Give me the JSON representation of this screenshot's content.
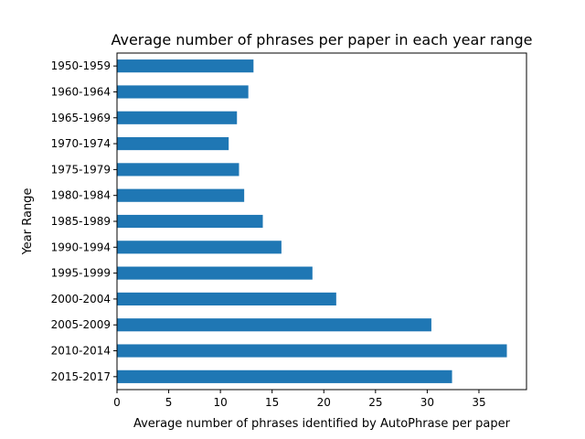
{
  "chart_data": {
    "type": "bar",
    "orientation": "horizontal",
    "title": "Average number of phrases per paper in each year range",
    "xlabel": "Average number of phrases identified by AutoPhrase per paper",
    "ylabel": "Year Range",
    "categories": [
      "1950-1959",
      "1960-1964",
      "1965-1969",
      "1970-1974",
      "1975-1979",
      "1980-1984",
      "1985-1989",
      "1990-1994",
      "1995-1999",
      "2000-2004",
      "2005-2009",
      "2010-2014",
      "2015-2017"
    ],
    "values": [
      13.2,
      12.7,
      11.6,
      10.8,
      11.8,
      12.3,
      14.1,
      15.9,
      18.9,
      21.2,
      30.4,
      37.7,
      32.4
    ],
    "xlim": [
      0,
      39.6
    ],
    "xticks": [
      0,
      5,
      10,
      15,
      20,
      25,
      30,
      35
    ],
    "grid": false,
    "bar_color": "#1f77b4"
  }
}
